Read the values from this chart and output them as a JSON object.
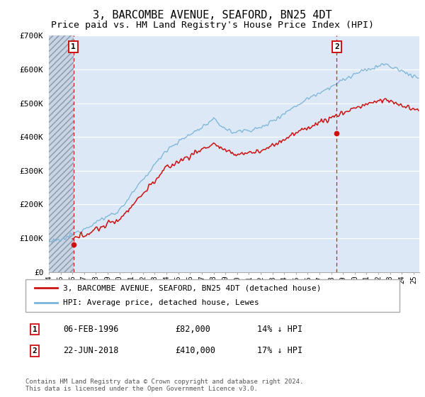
{
  "title": "3, BARCOMBE AVENUE, SEAFORD, BN25 4DT",
  "subtitle": "Price paid vs. HM Land Registry's House Price Index (HPI)",
  "ylim": [
    0,
    700000
  ],
  "yticks": [
    0,
    100000,
    200000,
    300000,
    400000,
    500000,
    600000,
    700000
  ],
  "ytick_labels": [
    "£0",
    "£100K",
    "£200K",
    "£300K",
    "£400K",
    "£500K",
    "£600K",
    "£700K"
  ],
  "xlim_start": 1994.0,
  "xlim_end": 2025.5,
  "transaction1_year": 1996.09,
  "transaction1_price": 82000,
  "transaction2_year": 2018.47,
  "transaction2_price": 410000,
  "transaction1_date": "06-FEB-1996",
  "transaction1_amount": "£82,000",
  "transaction1_hpi": "14% ↓ HPI",
  "transaction2_date": "22-JUN-2018",
  "transaction2_amount": "£410,000",
  "transaction2_hpi": "17% ↓ HPI",
  "hpi_line_color": "#7ab4d8",
  "price_line_color": "#cc1111",
  "dashed_line_color": "#cc2222",
  "background_color": "#dce8f5",
  "legend_label1": "3, BARCOMBE AVENUE, SEAFORD, BN25 4DT (detached house)",
  "legend_label2": "HPI: Average price, detached house, Lewes",
  "footnote": "Contains HM Land Registry data © Crown copyright and database right 2024.\nThis data is licensed under the Open Government Licence v3.0.",
  "title_fontsize": 11,
  "subtitle_fontsize": 9.5,
  "tick_fontsize": 8
}
